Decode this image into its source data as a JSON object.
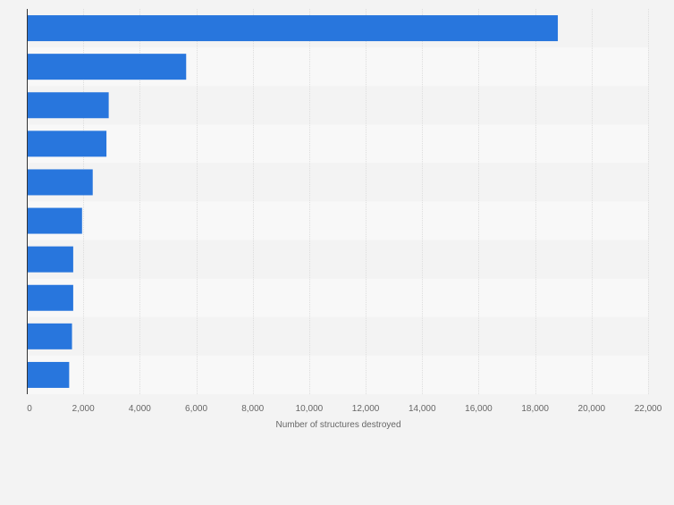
{
  "chart_data": {
    "type": "bar",
    "orientation": "horizontal",
    "categories": [
      "",
      "",
      "",
      "",
      "",
      "",
      "",
      "",
      "",
      ""
    ],
    "values": [
      18804,
      5643,
      2900,
      2820,
      2334,
      1956,
      1643,
      1643,
      1600,
      1500
    ],
    "xlabel": "Number of structures destroyed",
    "ylabel": "",
    "xlim": [
      0,
      22000
    ],
    "xticks": [
      0,
      2000,
      4000,
      6000,
      8000,
      10000,
      12000,
      14000,
      16000,
      18000,
      20000,
      22000
    ],
    "xtick_labels": [
      "0",
      "2,000",
      "4,000",
      "6,000",
      "8,000",
      "10,000",
      "12,000",
      "14,000",
      "16,000",
      "18,000",
      "20,000",
      "22,000"
    ],
    "grid": true,
    "legend": "none",
    "colors": {
      "bar": "#2876dd",
      "background": "#f3f3f3",
      "band_light": "#f8f8f8",
      "band_dark": "#f3f3f3",
      "grid": "#dddddd",
      "axis": "#333333",
      "text": "#666666"
    }
  }
}
